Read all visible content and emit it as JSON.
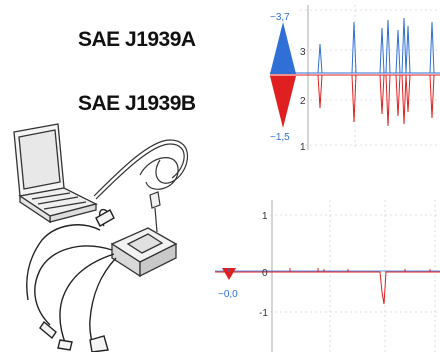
{
  "labels": {
    "sae_a": "SAE J1939A",
    "sae_b": "SAE J1939B"
  },
  "top_scope": {
    "marker_high": "~3,7",
    "marker_low": "~1,5",
    "ticks": [
      "3",
      "2",
      "1"
    ],
    "marker_high_color": "#2f6fd6",
    "marker_low_color": "#e02020"
  },
  "bottom_scope": {
    "marker_value": "~0,0",
    "ticks": [
      "1",
      "0",
      "-1"
    ],
    "marker_color": "#e02020"
  }
}
